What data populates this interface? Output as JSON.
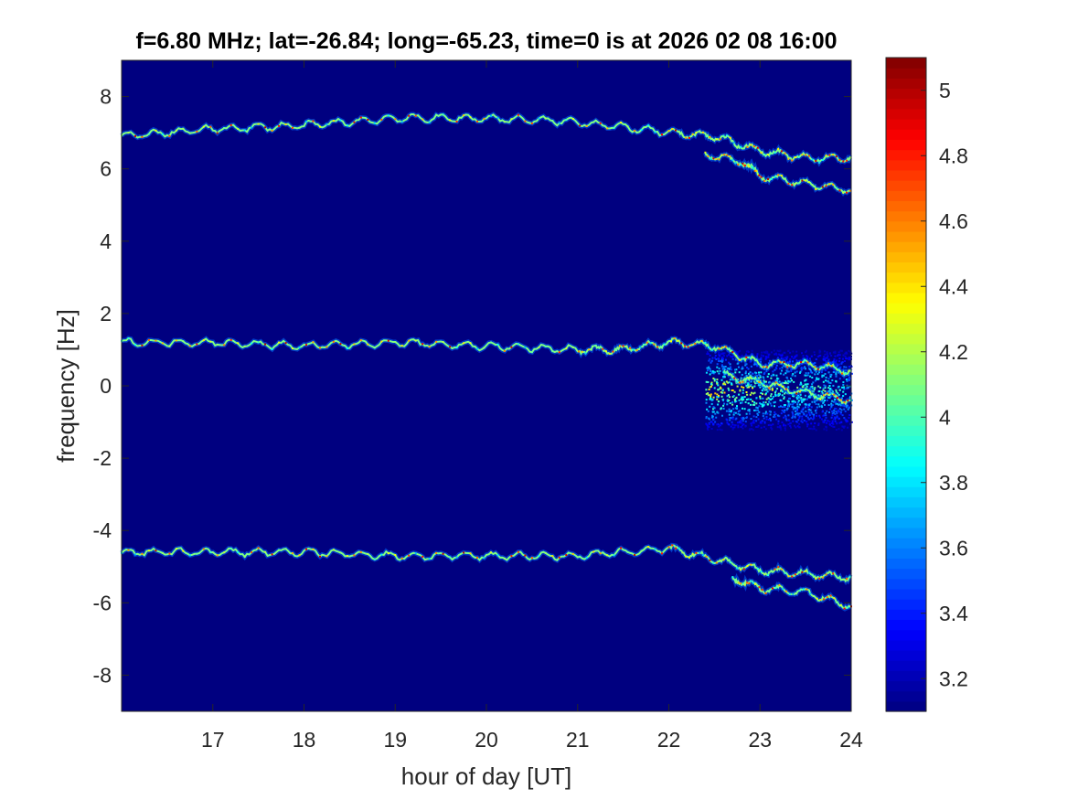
{
  "chart_data": {
    "type": "heatmap",
    "title": "f=6.80 MHz;  lat=-26.84; long=-65.23, time=0 is at 2026 02 08 16:00",
    "xlabel": "hour of day [UT]",
    "ylabel": "frequency [Hz]",
    "xlim": [
      16,
      24
    ],
    "ylim": [
      -9,
      9
    ],
    "xticks": [
      17,
      18,
      19,
      20,
      21,
      22,
      23,
      24
    ],
    "yticks": [
      8,
      6,
      4,
      2,
      0,
      -2,
      -4,
      -6,
      -8
    ],
    "colorbar": {
      "limits": [
        3.1,
        5.1
      ],
      "ticks": [
        5,
        4.8,
        4.6,
        4.4,
        4.2,
        4,
        3.8,
        3.6,
        3.4,
        3.2
      ],
      "colormap": "jet"
    },
    "background_level": 3.1,
    "traces": [
      {
        "x": [
          16.0,
          17.0,
          18.0,
          19.0,
          20.0,
          21.0,
          22.0,
          22.5,
          23.0,
          23.5,
          24.0
        ],
        "y": [
          6.9,
          7.1,
          7.2,
          7.4,
          7.4,
          7.3,
          7.0,
          6.9,
          6.5,
          6.3,
          6.3
        ]
      },
      {
        "x": [
          22.4,
          22.8,
          23.0,
          23.5,
          24.0
        ],
        "y": [
          6.4,
          6.2,
          5.8,
          5.6,
          5.4
        ]
      },
      {
        "x": [
          16.0,
          17.0,
          18.0,
          19.0,
          20.0,
          21.0,
          21.5,
          22.0,
          22.5,
          23.0,
          23.5,
          24.0
        ],
        "y": [
          1.2,
          1.2,
          1.1,
          1.2,
          1.1,
          1.0,
          1.0,
          1.2,
          1.1,
          0.6,
          0.6,
          0.4
        ]
      },
      {
        "x": [
          22.6,
          23.0,
          23.5,
          24.0
        ],
        "y": [
          0.3,
          0.1,
          -0.2,
          -0.4
        ]
      },
      {
        "x": [
          16.0,
          17.0,
          18.0,
          19.0,
          20.0,
          21.0,
          22.0,
          22.5,
          23.0,
          23.5,
          24.0
        ],
        "y": [
          -4.6,
          -4.6,
          -4.6,
          -4.7,
          -4.7,
          -4.7,
          -4.5,
          -4.8,
          -5.1,
          -5.2,
          -5.3
        ]
      },
      {
        "x": [
          22.7,
          23.0,
          23.5,
          24.0
        ],
        "y": [
          -5.3,
          -5.6,
          -5.7,
          -6.1
        ]
      }
    ],
    "diffuse_region": {
      "x": [
        22.4,
        24.0
      ],
      "y": [
        -1.2,
        1.0
      ]
    }
  }
}
